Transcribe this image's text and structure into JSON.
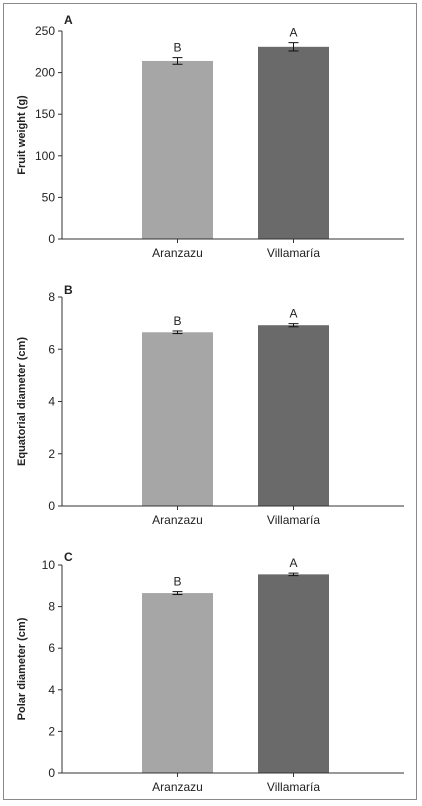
{
  "chart_data": [
    {
      "type": "bar",
      "panel": "A",
      "categories": [
        "Aranzazu",
        "Villamaría"
      ],
      "values": [
        214,
        231
      ],
      "errors": [
        4,
        5
      ],
      "significance": [
        "B",
        "A"
      ],
      "ylabel": "Fruit weight (g)",
      "ylim": [
        0,
        250
      ],
      "yticks": [
        "0",
        "50",
        "100",
        "150",
        "200",
        "250"
      ],
      "bar_colors": [
        "#a6a6a6",
        "#6a6a6a"
      ]
    },
    {
      "type": "bar",
      "panel": "B",
      "categories": [
        "Aranzazu",
        "Villamaría"
      ],
      "values": [
        6.65,
        6.92
      ],
      "errors": [
        0.05,
        0.06
      ],
      "significance": [
        "B",
        "A"
      ],
      "ylabel": "Equatorial diameter (cm)",
      "ylim": [
        0,
        8
      ],
      "yticks": [
        "0",
        "2",
        "4",
        "6",
        "8"
      ],
      "bar_colors": [
        "#a6a6a6",
        "#6a6a6a"
      ]
    },
    {
      "type": "bar",
      "panel": "C",
      "categories": [
        "Aranzazu",
        "Villamaría"
      ],
      "values": [
        8.65,
        9.55
      ],
      "errors": [
        0.07,
        0.06
      ],
      "significance": [
        "B",
        "A"
      ],
      "ylabel": "Polar diameter (cm)",
      "ylim": [
        0,
        10
      ],
      "yticks": [
        "0",
        "2",
        "4",
        "6",
        "8",
        "10"
      ],
      "bar_colors": [
        "#a6a6a6",
        "#6a6a6a"
      ]
    }
  ]
}
